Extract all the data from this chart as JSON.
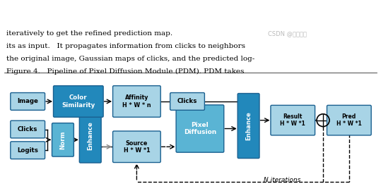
{
  "fig_width": 5.39,
  "fig_height": 2.71,
  "dpi": 100,
  "bg_color": "#ffffff",
  "light_blue": "#a8d4e6",
  "medium_blue": "#5ab4d4",
  "dark_blue": "#2288bb",
  "box_edge": "#1a6090",
  "caption_line1": "Figure 4.   Pipeline of Pixel Diffusion Module (PDM). PDM takes",
  "caption_line2": "the original image, Gaussian maps of clicks, and the predicted log-",
  "caption_line3": "its as input.   It propagates information from clicks to neighbors",
  "caption_line4": "iteratively to get the refined prediction map.",
  "watermark": "CSDN @我是家家"
}
